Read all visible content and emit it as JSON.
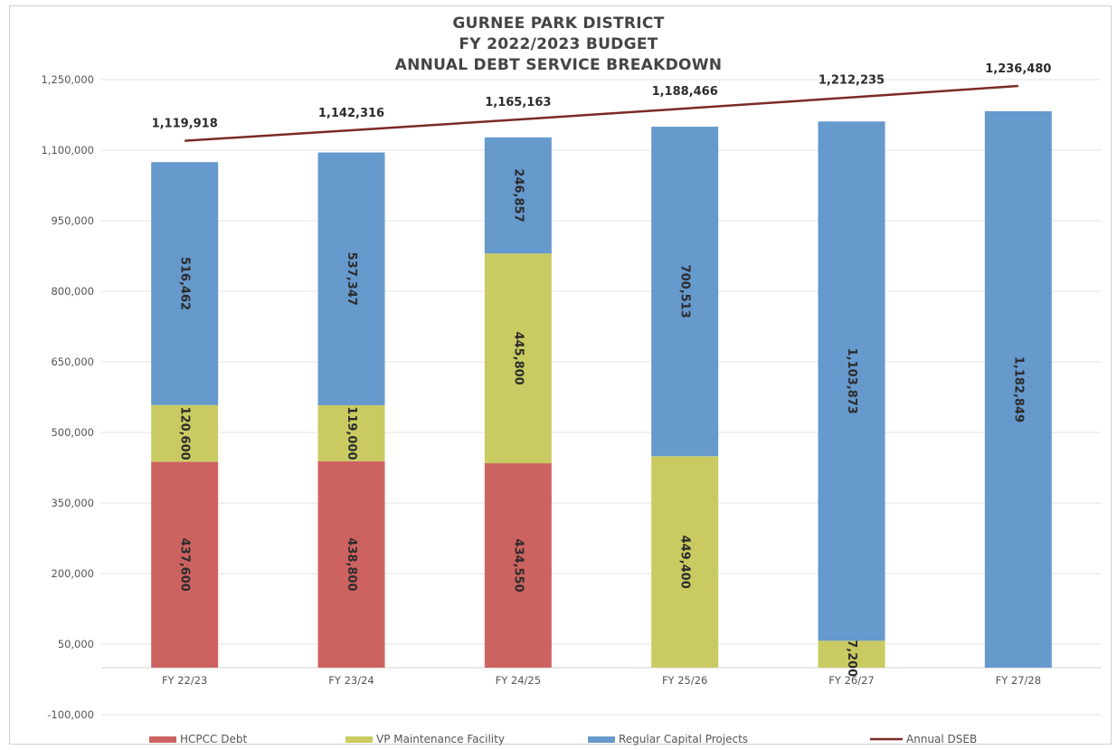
{
  "chart_data": {
    "type": "bar",
    "stacked": true,
    "title_lines": [
      "GURNEE PARK DISTRICT",
      "FY 2022/2023 BUDGET",
      "ANNUAL DEBT SERVICE BREAKDOWN"
    ],
    "categories": [
      "FY 22/23",
      "FY 23/24",
      "FY 24/25",
      "FY 25/26",
      "FY 26/27",
      "FY 27/28"
    ],
    "y_ticks": [
      "1,250,000",
      "1,100,000",
      "950,000",
      "800,000",
      "650,000",
      "500,000",
      "350,000",
      "200,000",
      "50,000",
      "-100,000"
    ],
    "y_tick_values": [
      1250000,
      1100000,
      950000,
      800000,
      650000,
      500000,
      350000,
      200000,
      50000,
      -100000
    ],
    "series": [
      {
        "name": "HCPCC Debt",
        "color": "#cd6361",
        "values": [
          437600,
          438800,
          434550,
          0,
          0,
          0
        ],
        "labels": [
          "437,600",
          "438,800",
          "434,550",
          "",
          "",
          ""
        ]
      },
      {
        "name": "VP Maintenance Facility",
        "color": "#c9cb62",
        "values": [
          120600,
          119000,
          445800,
          449400,
          57200,
          0
        ],
        "labels": [
          "120,600",
          "119,000",
          "445,800",
          "449,400",
          "57,200",
          ""
        ]
      },
      {
        "name": "Regular Capital Projects",
        "color": "#6699cc",
        "values": [
          516462,
          537347,
          246857,
          700513,
          1103873,
          1182849
        ],
        "labels": [
          "516,462",
          "537,347",
          "246,857",
          "700,513",
          "1,103,873",
          "1,182,849"
        ]
      }
    ],
    "line_series": {
      "name": "Annual DSEB",
      "color": "#7b2a26",
      "values": [
        1119918,
        1142316,
        1165163,
        1188466,
        1212235,
        1236480
      ],
      "labels": [
        "1,119,918",
        "1,142,316",
        "1,165,163",
        "1,188,466",
        "1,212,235",
        "1,236,480"
      ]
    },
    "ylim": [
      -100000,
      1250000
    ],
    "grid": true,
    "legend_position": "bottom"
  }
}
